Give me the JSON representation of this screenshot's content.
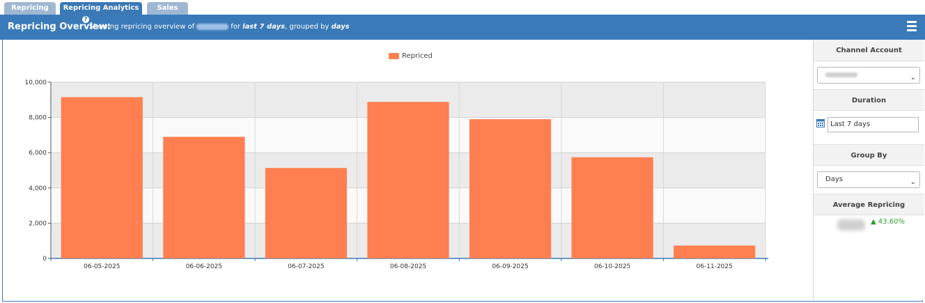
{
  "tabs": [
    {
      "label": "Repricing",
      "active": false
    },
    {
      "label": "Repricing Analytics",
      "active": true
    },
    {
      "label": "Sales",
      "active": false
    }
  ],
  "header": {
    "title": "Repricing Overview:",
    "subtitle_prefix": "Showing repricing overview of",
    "subtitle_for": "for",
    "duration_text": "last 7 days",
    "subtitle_grouped": ", grouped by",
    "group_text": "days",
    "help_icon": "help-icon",
    "menu_icon": "hamburger-icon"
  },
  "sidebar": {
    "channel_account_header": "Channel Account",
    "duration_header": "Duration",
    "duration_value": "Last 7 days",
    "group_by_header": "Group By",
    "group_by_value": "Days",
    "average_header": "Average Repricing",
    "average_change": "43.60%",
    "average_change_direction": "up"
  },
  "chart_data": {
    "type": "bar",
    "legend": [
      "Repriced"
    ],
    "categories": [
      "06-05-2025",
      "06-06-2025",
      "06-07-2025",
      "06-08-2025",
      "06-09-2025",
      "06-10-2025",
      "06-11-2025"
    ],
    "series": [
      {
        "name": "Repriced",
        "values": [
          9150,
          6900,
          5130,
          8880,
          7900,
          5740,
          730
        ],
        "color": "#ff7f50"
      }
    ],
    "yticks": [
      "0",
      "2,000",
      "4,000",
      "6,000",
      "8,000",
      "10,000"
    ],
    "ylim": [
      0,
      10000
    ],
    "grid": true,
    "legend_position": "top-center"
  }
}
